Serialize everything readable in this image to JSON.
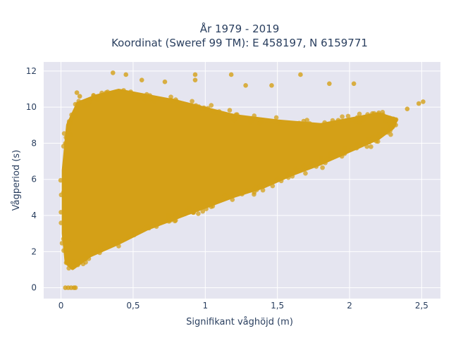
{
  "chart_data": {
    "type": "scatter",
    "title_line1": "År 1979 - 2019",
    "title_line2": "Koordinat (Sweref 99 TM): E 458197, N 6159771",
    "xlabel": "Signifikant våghöjd (m)",
    "ylabel": "Vågperiod (s)",
    "xlim": [
      -0.12,
      2.63
    ],
    "ylim": [
      -0.6,
      12.5
    ],
    "xticks": [
      0,
      0.5,
      1,
      1.5,
      2,
      2.5
    ],
    "xtick_labels": [
      "0",
      "0,5",
      "1",
      "1,5",
      "2",
      "2,5"
    ],
    "yticks": [
      0,
      2,
      4,
      6,
      8,
      10,
      12
    ],
    "ytick_labels": [
      "0",
      "2",
      "4",
      "6",
      "8",
      "10",
      "12"
    ],
    "grid": true,
    "marker_color": "#D4A017",
    "background_color": "#E5E5F0",
    "outliers": [
      {
        "x": 0.03,
        "y": 0
      },
      {
        "x": 0.05,
        "y": 0
      },
      {
        "x": 0.07,
        "y": 0
      },
      {
        "x": 0.09,
        "y": 0
      },
      {
        "x": 0.1,
        "y": 0
      },
      {
        "x": 0.36,
        "y": 11.9
      },
      {
        "x": 0.45,
        "y": 11.8
      },
      {
        "x": 0.93,
        "y": 11.8
      },
      {
        "x": 1.18,
        "y": 11.8
      },
      {
        "x": 1.66,
        "y": 11.8
      },
      {
        "x": 0.93,
        "y": 11.5
      },
      {
        "x": 0.56,
        "y": 11.5
      },
      {
        "x": 0.72,
        "y": 11.4
      },
      {
        "x": 1.28,
        "y": 11.2
      },
      {
        "x": 1.46,
        "y": 11.2
      },
      {
        "x": 1.86,
        "y": 11.3
      },
      {
        "x": 2.03,
        "y": 11.3
      },
      {
        "x": 2.51,
        "y": 10.3
      },
      {
        "x": 2.48,
        "y": 10.2
      },
      {
        "x": 2.4,
        "y": 9.9
      },
      {
        "x": 0.11,
        "y": 10.8
      },
      {
        "x": 0.13,
        "y": 10.6
      }
    ],
    "cloud_points": [
      {
        "x": 0.04,
        "y": 1.4
      },
      {
        "x": 0.08,
        "y": 1.1
      },
      {
        "x": 0.2,
        "y": 1.8
      },
      {
        "x": 0.4,
        "y": 2.5
      },
      {
        "x": 0.6,
        "y": 3.3
      },
      {
        "x": 0.8,
        "y": 3.9
      },
      {
        "x": 1.0,
        "y": 4.5
      },
      {
        "x": 1.2,
        "y": 5.1
      },
      {
        "x": 1.4,
        "y": 5.6
      },
      {
        "x": 1.6,
        "y": 6.3
      },
      {
        "x": 1.8,
        "y": 6.9
      },
      {
        "x": 2.0,
        "y": 7.6
      },
      {
        "x": 2.2,
        "y": 8.3
      },
      {
        "x": 2.3,
        "y": 8.9
      },
      {
        "x": 2.32,
        "y": 9.3
      },
      {
        "x": 2.2,
        "y": 9.6
      },
      {
        "x": 2.0,
        "y": 9.3
      },
      {
        "x": 1.8,
        "y": 9.0
      },
      {
        "x": 1.5,
        "y": 9.2
      },
      {
        "x": 1.2,
        "y": 9.5
      },
      {
        "x": 1.0,
        "y": 9.9
      },
      {
        "x": 0.8,
        "y": 10.3
      },
      {
        "x": 0.6,
        "y": 10.6
      },
      {
        "x": 0.4,
        "y": 10.9
      },
      {
        "x": 0.25,
        "y": 10.6
      },
      {
        "x": 0.12,
        "y": 10.2
      },
      {
        "x": 0.05,
        "y": 9.0
      },
      {
        "x": 0.02,
        "y": 6.5
      },
      {
        "x": 0.02,
        "y": 3.0
      }
    ]
  }
}
